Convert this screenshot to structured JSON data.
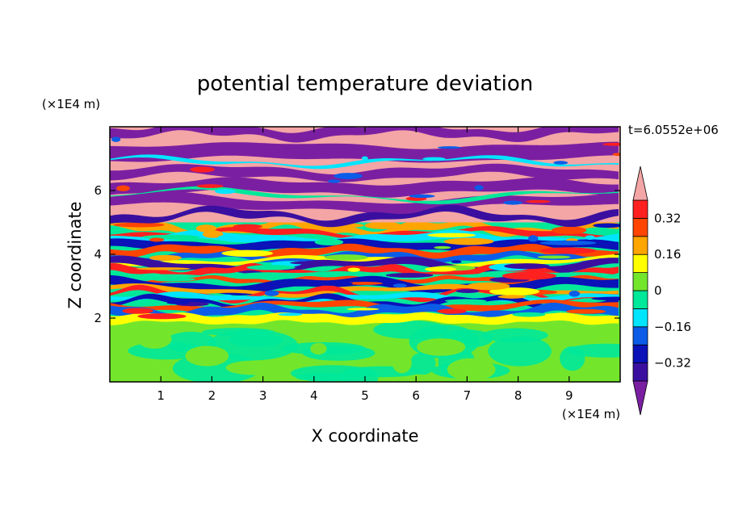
{
  "chart_data": {
    "type": "heatmap",
    "title": "potential temperature deviation",
    "xlabel": "X coordinate",
    "ylabel": "Z coordinate",
    "x_unit": "(×1E4 m)",
    "y_unit": "(×1E4 m)",
    "annotation": "t=6.0552e+06",
    "xlim": [
      0,
      10
    ],
    "ylim": [
      0,
      8
    ],
    "x_ticks": [
      1,
      2,
      3,
      4,
      5,
      6,
      7,
      8,
      9
    ],
    "y_ticks": [
      2,
      4,
      6
    ],
    "colorbar": {
      "levels": [
        -0.4,
        -0.32,
        -0.24,
        -0.16,
        -0.08,
        0,
        0.08,
        0.16,
        0.24,
        0.32,
        0.4
      ],
      "tick_labels": [
        "0.32",
        "0.16",
        "0",
        "−0.16",
        "−0.32"
      ],
      "tick_values": [
        0.32,
        0.16,
        0,
        -0.16,
        -0.32
      ],
      "colors_low_to_high": [
        "#7b1fa2",
        "#3a0fa0",
        "#0a12b8",
        "#0b5de8",
        "#00e5ff",
        "#00e89a",
        "#73e62c",
        "#ffff00",
        "#ffa500",
        "#ff4500",
        "#ff2020",
        "#f4a5a5"
      ]
    },
    "bands": [
      {
        "z": [
          0,
          2.0
        ],
        "dominant": "green / cyan-green mix, weak deviations near 0"
      },
      {
        "z": [
          2.0,
          5.0
        ],
        "dominant": "mixed full-range turbulent layers"
      },
      {
        "z": [
          5.0,
          8.0
        ],
        "dominant": "alternating pink (>0.4) and purple (<-0.4) layers"
      }
    ]
  }
}
